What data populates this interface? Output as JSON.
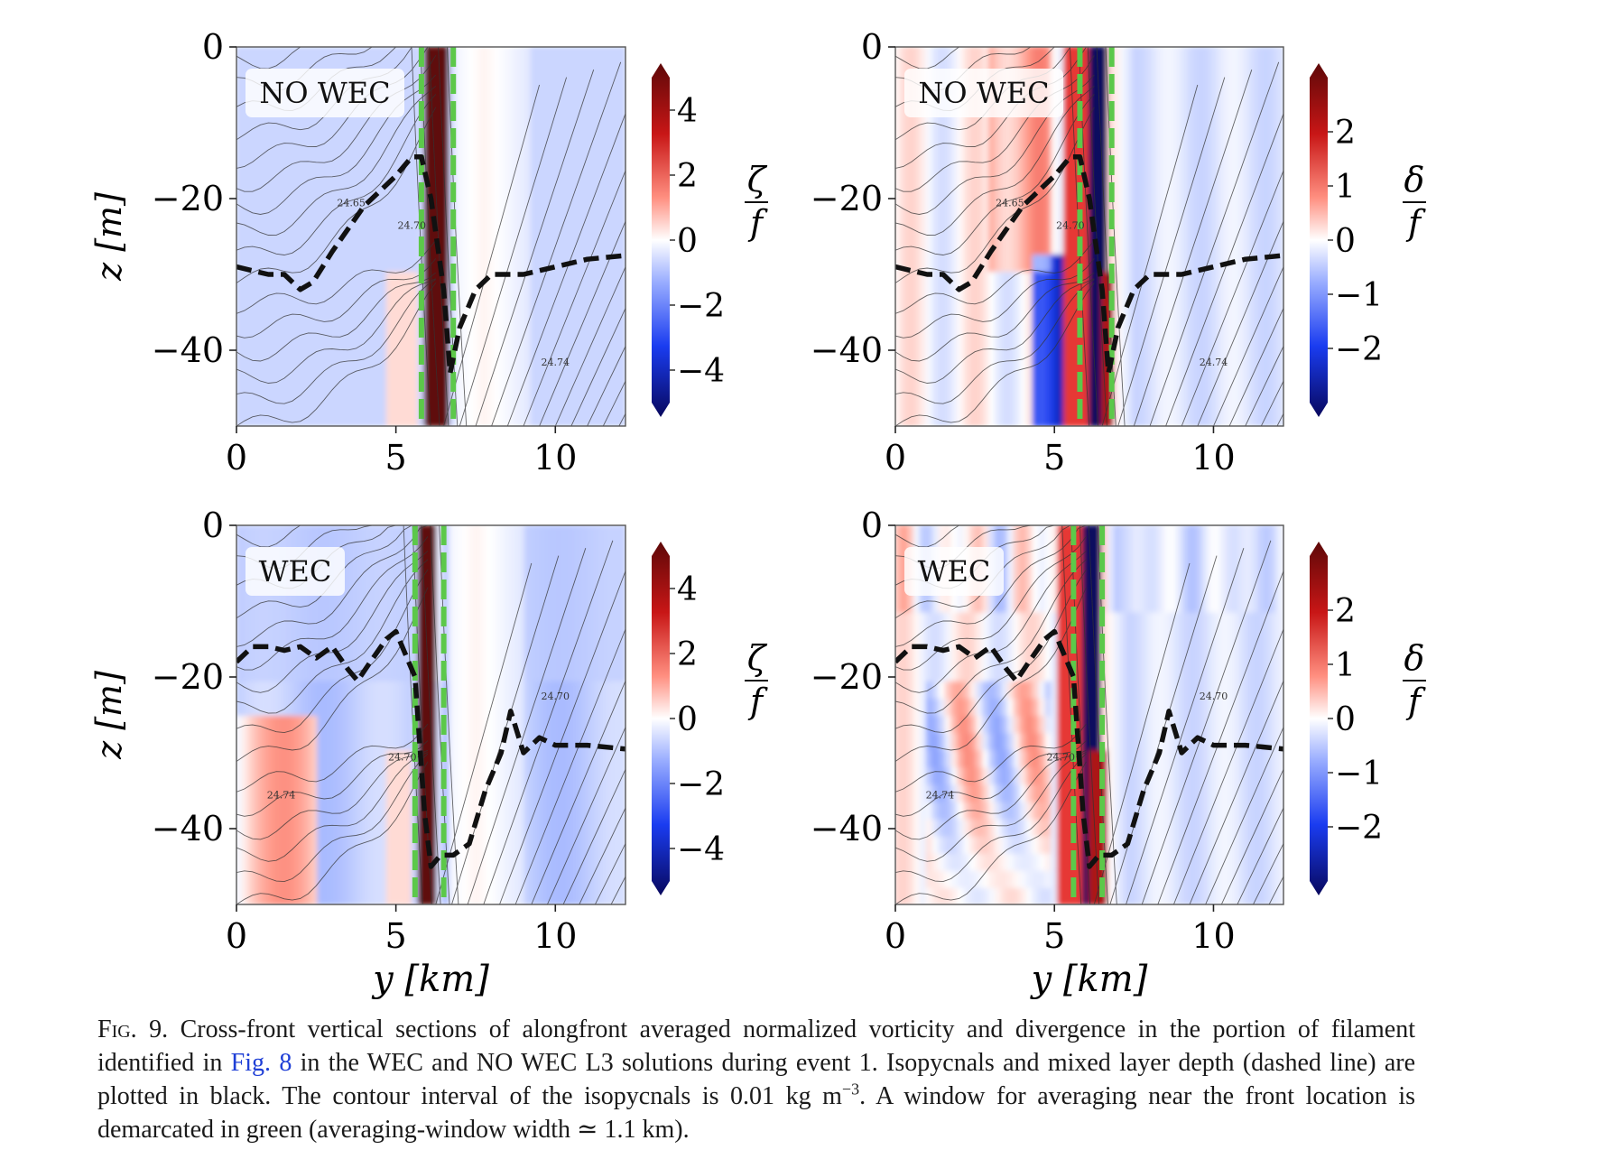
{
  "chart_data": [
    {
      "type": "heatmap",
      "panel_label": "NO WEC",
      "variable": "vorticity",
      "xlim": [
        0,
        12.2
      ],
      "ylim": [
        -50,
        0
      ],
      "xticks": [
        "0",
        "5",
        "10"
      ],
      "yticks": [
        "0",
        "−20",
        "−40"
      ],
      "ylabel": "z [m]",
      "xlabel": "",
      "colorbar": {
        "ticks": [
          "4",
          "2",
          "0",
          "−2",
          "−4"
        ],
        "tick_values": [
          4,
          2,
          0,
          -2,
          -4
        ],
        "range": [
          -5,
          5
        ],
        "label_num": "ζ",
        "label_den": "f"
      },
      "front_window_km": [
        5.8,
        6.8
      ],
      "mld": {
        "y": [
          0,
          1,
          1.5,
          2,
          2.4,
          3,
          4,
          5,
          5.5,
          5.8,
          6.1,
          6.5,
          6.7,
          7,
          7.5,
          8,
          9,
          10,
          11,
          12.2
        ],
        "z": [
          -29,
          -30,
          -30,
          -32,
          -31,
          -27,
          -21,
          -17,
          -14.5,
          -14.5,
          -20,
          -32,
          -43,
          -37,
          -32,
          -30,
          -30,
          -29,
          -28,
          -27.5
        ]
      },
      "isopycnal_labels": [
        "24.65",
        "24.70",
        "24.74"
      ]
    },
    {
      "type": "heatmap",
      "panel_label": "NO WEC",
      "variable": "divergence",
      "xlim": [
        0,
        12.2
      ],
      "ylim": [
        -50,
        0
      ],
      "xticks": [
        "0",
        "5",
        "10"
      ],
      "yticks": [
        "0",
        "−20",
        "−40"
      ],
      "ylabel": "",
      "xlabel": "",
      "colorbar": {
        "ticks": [
          "2",
          "1",
          "0",
          "−1",
          "−2"
        ],
        "tick_values": [
          2,
          1,
          0,
          -1,
          -2
        ],
        "range": [
          -3,
          3
        ],
        "label_num": "δ",
        "label_den": "f"
      },
      "front_window_km": [
        5.8,
        6.8
      ],
      "mld": {
        "y": [
          0,
          1,
          1.5,
          2,
          2.4,
          3,
          4,
          5,
          5.5,
          5.8,
          6.1,
          6.5,
          6.7,
          7,
          7.5,
          8,
          9,
          10,
          11,
          12.2
        ],
        "z": [
          -29,
          -30,
          -30,
          -32,
          -31,
          -27,
          -21,
          -17,
          -14.5,
          -14.5,
          -20,
          -32,
          -43,
          -37,
          -32,
          -30,
          -30,
          -29,
          -28,
          -27.5
        ]
      },
      "isopycnal_labels": [
        "24.65",
        "24.70",
        "24.74"
      ]
    },
    {
      "type": "heatmap",
      "panel_label": "WEC",
      "variable": "vorticity",
      "xlim": [
        0,
        12.2
      ],
      "ylim": [
        -50,
        0
      ],
      "xticks": [
        "0",
        "5",
        "10"
      ],
      "yticks": [
        "0",
        "−20",
        "−40"
      ],
      "ylabel": "z [m]",
      "xlabel": "y [km]",
      "colorbar": {
        "ticks": [
          "4",
          "2",
          "0",
          "−2",
          "−4"
        ],
        "tick_values": [
          4,
          2,
          0,
          -2,
          -4
        ],
        "range": [
          -5,
          5
        ],
        "label_num": "ζ",
        "label_den": "f"
      },
      "front_window_km": [
        5.6,
        6.5
      ],
      "mld": {
        "y": [
          0,
          0.5,
          1,
          1.5,
          2,
          2.5,
          3,
          3.5,
          3.8,
          4.2,
          4.7,
          5,
          5.3,
          5.6,
          5.9,
          6.1,
          6.4,
          6.8,
          7.3,
          7.8,
          8.3,
          8.6,
          9,
          9.5,
          10,
          11,
          12.2
        ],
        "z": [
          -18,
          -16,
          -16,
          -16.5,
          -16,
          -17.5,
          -16,
          -19,
          -20.5,
          -18,
          -15,
          -14,
          -17,
          -20,
          -38,
          -45,
          -43.5,
          -43.5,
          -42,
          -35,
          -30,
          -24.5,
          -30,
          -28,
          -29,
          -29,
          -29.5
        ]
      },
      "isopycnal_labels": [
        "24.70",
        "24.70",
        "24.74"
      ]
    },
    {
      "type": "heatmap",
      "panel_label": "WEC",
      "variable": "divergence",
      "xlim": [
        0,
        12.2
      ],
      "ylim": [
        -50,
        0
      ],
      "xticks": [
        "0",
        "5",
        "10"
      ],
      "yticks": [
        "0",
        "−20",
        "−40"
      ],
      "ylabel": "",
      "xlabel": "y [km]",
      "colorbar": {
        "ticks": [
          "2",
          "1",
          "0",
          "−1",
          "−2"
        ],
        "tick_values": [
          2,
          1,
          0,
          -1,
          -2
        ],
        "range": [
          -3,
          3
        ],
        "label_num": "δ",
        "label_den": "f"
      },
      "front_window_km": [
        5.6,
        6.5
      ],
      "mld": {
        "y": [
          0,
          0.5,
          1,
          1.5,
          2,
          2.5,
          3,
          3.5,
          3.8,
          4.2,
          4.7,
          5,
          5.3,
          5.6,
          5.9,
          6.1,
          6.4,
          6.8,
          7.3,
          7.8,
          8.3,
          8.6,
          9,
          9.5,
          10,
          11,
          12.2
        ],
        "z": [
          -18,
          -16,
          -16,
          -16.5,
          -16,
          -17.5,
          -16,
          -19,
          -20.5,
          -18,
          -15,
          -14,
          -17,
          -20,
          -38,
          -45,
          -43.5,
          -43.5,
          -42,
          -35,
          -30,
          -24.5,
          -30,
          -28,
          -29,
          -29,
          -29.5
        ]
      },
      "isopycnal_labels": [
        "24.70",
        "24.70",
        "24.74"
      ]
    }
  ],
  "caption": {
    "label": "Fig. 9.",
    "text_before_ref": " Cross-front vertical sections of alongfront averaged normalized vorticity and divergence in the portion of filament identified in ",
    "ref": "Fig. 8",
    "text_after_ref": " in the WEC and NO WEC L3 solutions during event 1. Isopycnals and mixed layer depth (dashed line) are plotted in black. The contour interval of the isopycnals is 0.01 kg m",
    "superscript": "−3",
    "text_end": ". A window for averaging near the front location is demarcated in green (averaging-window width ≃ 1.1 km)."
  },
  "colors": {
    "front_window": "#5cc84a",
    "mld_line": "#111111",
    "colormap": [
      "#08085e",
      "#1a3cf0",
      "#9fb3ff",
      "#ffffff",
      "#ff9a8a",
      "#e02020",
      "#5e0808"
    ]
  }
}
